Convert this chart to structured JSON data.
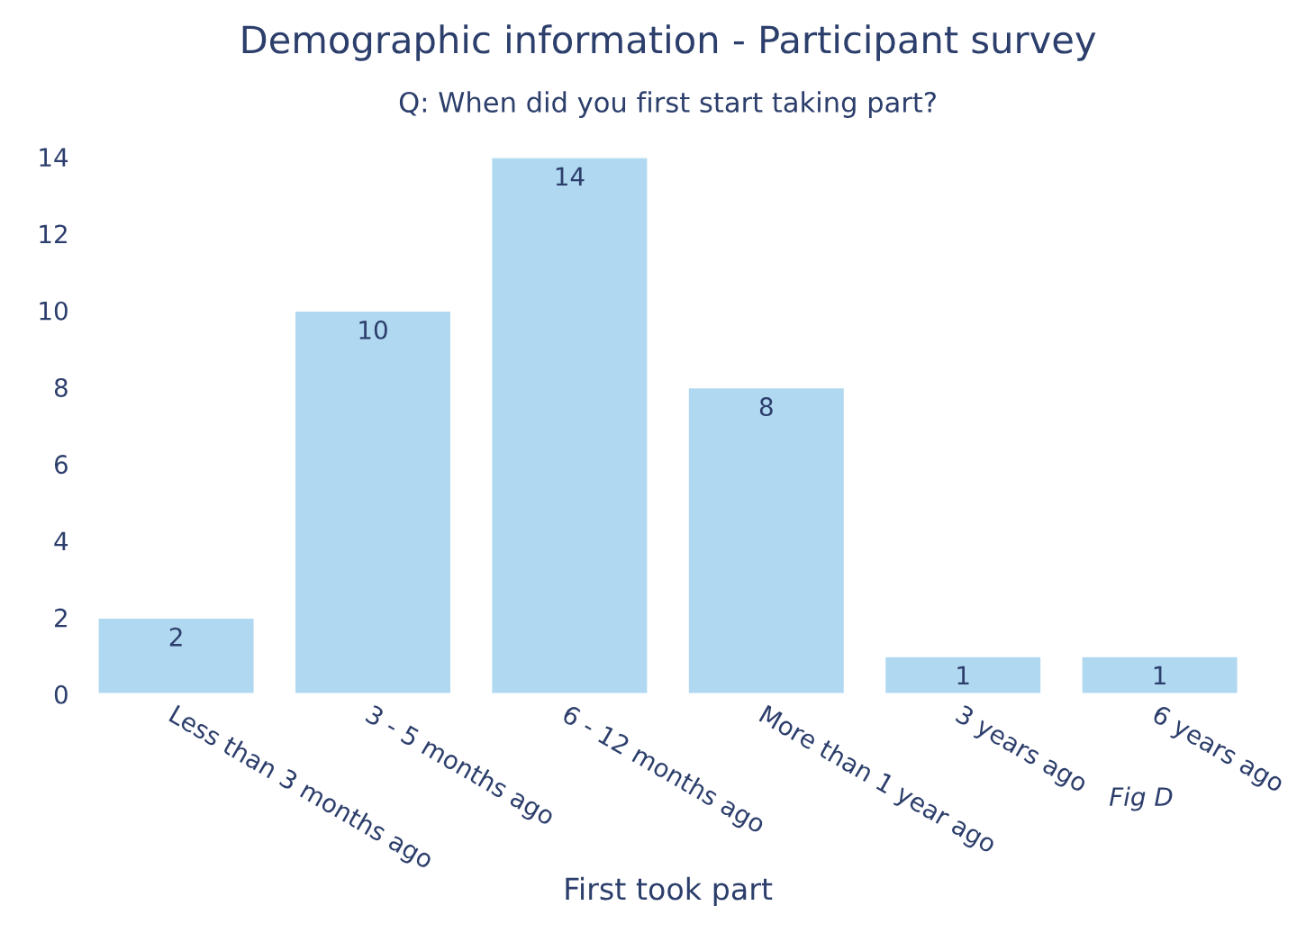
{
  "chart_data": {
    "type": "bar",
    "title": "Demographic information - Participant survey",
    "subtitle": "Q: When did you first start taking part?",
    "xlabel": "First took part",
    "categories": [
      "Less than 3 months ago",
      "3 - 5 months ago",
      "6 - 12 months ago",
      "More than 1 year ago",
      "3 years ago",
      "6 years ago"
    ],
    "values": [
      2,
      10,
      14,
      8,
      1,
      1
    ],
    "color": "#b0d8f0",
    "ylim": [
      0,
      14
    ],
    "yticks": [
      0,
      2,
      4,
      6,
      8,
      10,
      12,
      14
    ],
    "grid": false,
    "data_labels": true,
    "annotations": [
      "Fig D"
    ]
  }
}
